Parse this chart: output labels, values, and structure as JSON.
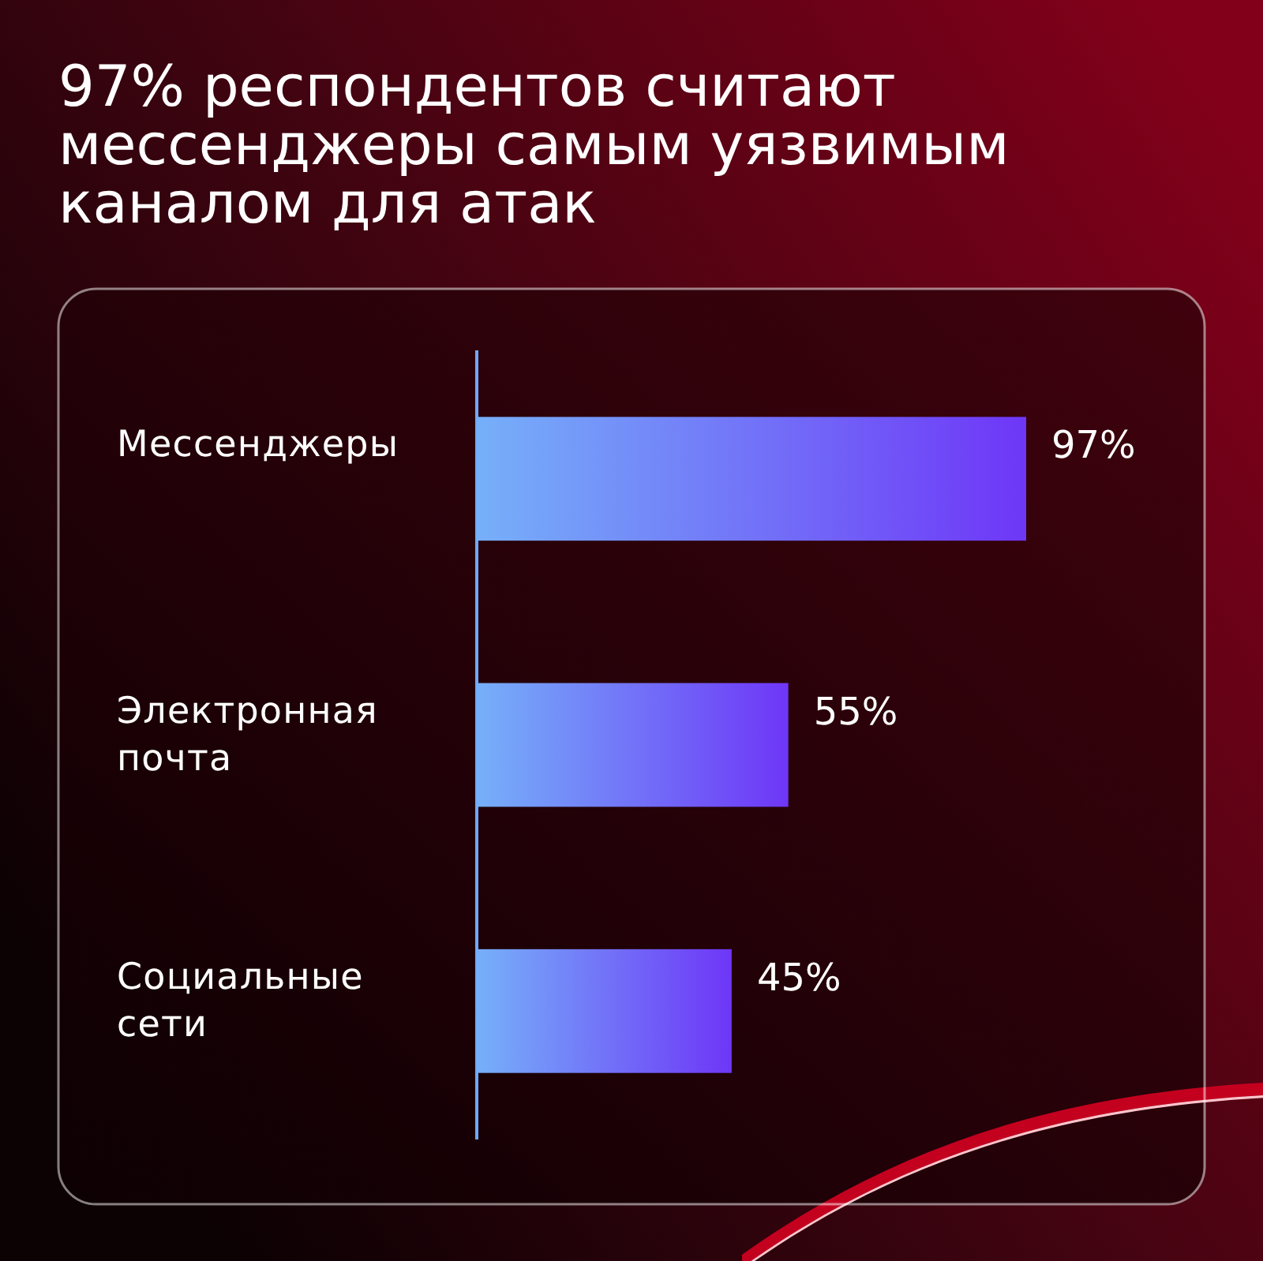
{
  "chart_data": {
    "type": "bar",
    "orientation": "horizontal",
    "title": "97% респондентов считают мессенджеры самым уязвимым каналом для атак",
    "categories": [
      "Мессенджеры",
      "Электронная почта",
      "Социальные сети"
    ],
    "values": [
      97,
      55,
      45
    ],
    "value_labels": [
      "97%",
      "55%",
      "45%"
    ],
    "color": "#6d6cf9"
  }
}
